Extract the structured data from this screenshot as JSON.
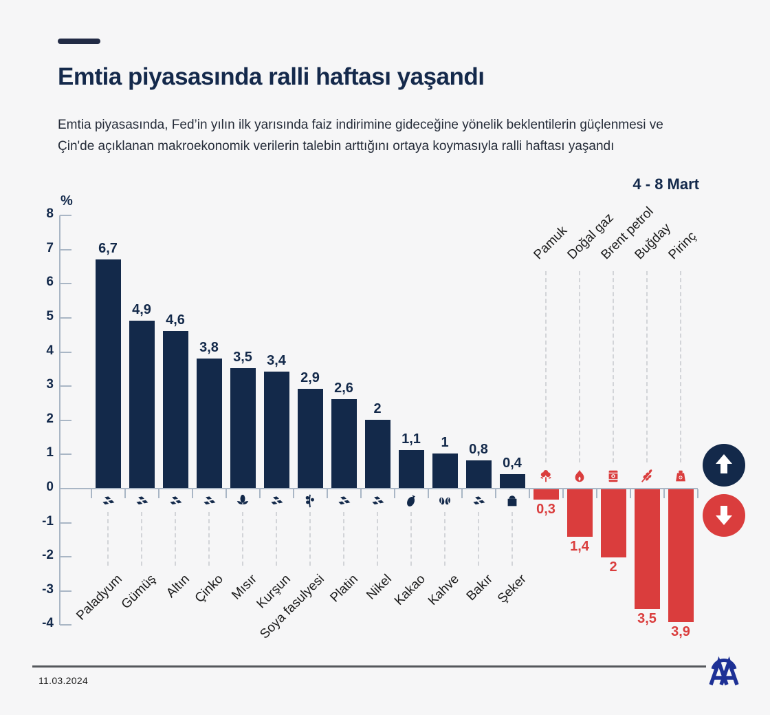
{
  "header": {
    "title": "Emtia piyasasında ralli haftası yaşandı",
    "subtitle_line1": "Emtia piyasasında, Fed’in yılın ilk yarısında faiz indirimine gideceğine yönelik beklentilerin güçlenmesi ve",
    "subtitle_line2": "Çin'de açıklanan makroekonomik verilerin talebin arttığını ortaya koymasıyla ralli haftası yaşandı"
  },
  "chart_data": {
    "type": "bar",
    "title": "Emtia piyasasında ralli haftası yaşandı",
    "period_label": "4 - 8 Mart",
    "unit_label": "%",
    "ylim": [
      -4,
      8
    ],
    "ytick_step": 1,
    "grid": false,
    "categories": [
      "Paladyum",
      "Gümüş",
      "Altın",
      "Çinko",
      "Mısır",
      "Kurşun",
      "Soya fasulyesi",
      "Platin",
      "Nikel",
      "Kakao",
      "Kahve",
      "Bakır",
      "Şeker",
      "Pamuk",
      "Doğal gaz",
      "Brent petrol",
      "Buğday",
      "Pirinç"
    ],
    "values": [
      6.7,
      4.9,
      4.6,
      3.8,
      3.5,
      3.4,
      2.9,
      2.6,
      2,
      1.1,
      1,
      0.8,
      0.4,
      -0.3,
      -1.4,
      -2,
      -3.5,
      -3.9
    ],
    "value_labels": [
      "6,7",
      "4,9",
      "4,6",
      "3,8",
      "3,5",
      "3,4",
      "2,9",
      "2,6",
      "2",
      "1,1",
      "1",
      "0,8",
      "0,4",
      "0,3",
      "1,4",
      "2",
      "3,5",
      "3,9"
    ],
    "icons": [
      "ingots-icon",
      "ingots-icon",
      "ingots-icon",
      "ingots-icon",
      "corn-icon",
      "ingots-icon",
      "soybean-icon",
      "ingots-icon",
      "ingots-icon",
      "cacao-icon",
      "coffee-icon",
      "ingots-icon",
      "sugar-sack-icon",
      "cotton-icon",
      "flame-icon",
      "oil-barrel-icon",
      "wheat-icon",
      "rice-sack-icon"
    ],
    "colors": {
      "positive": "#13294a",
      "negative": "#da3d3d",
      "axis": "#a9b6c5"
    },
    "legend_position": "right-of-negative-bars"
  },
  "legend": {
    "up_color": "#13294a",
    "down_color": "#da3d3d"
  },
  "footer": {
    "date": "11.03.2024",
    "logo": "AA"
  }
}
